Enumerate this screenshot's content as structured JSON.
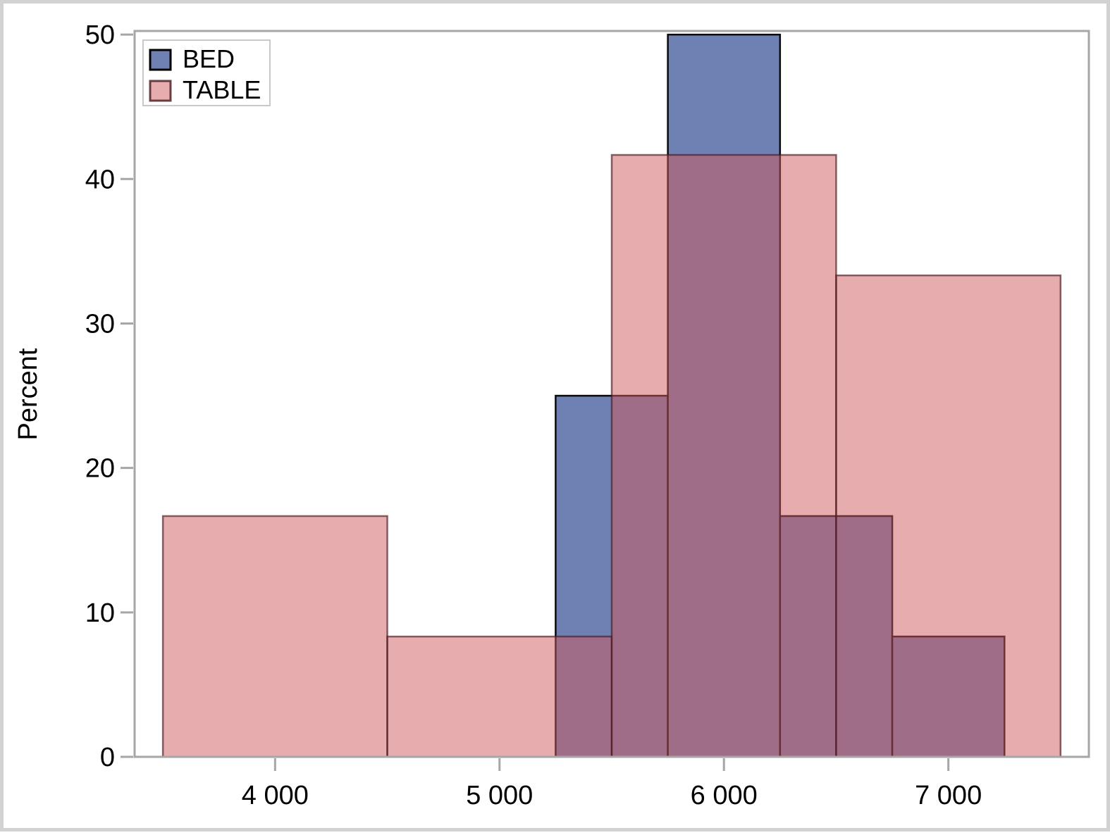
{
  "figure": {
    "border_color": "#D2D2D2",
    "background": "#FFFFFF"
  },
  "chart_data": {
    "type": "histogram",
    "overlay": true,
    "title": "",
    "xlabel": "",
    "ylabel": "Percent",
    "xlim": [
      3374,
      7626
    ],
    "ylim": [
      0,
      50.25
    ],
    "grid": false,
    "axis_color": "#A6A6A6",
    "tick_label_color": "#000000",
    "x_ticks": [
      {
        "value": 4000,
        "label": "4 000"
      },
      {
        "value": 5000,
        "label": "5 000"
      },
      {
        "value": 6000,
        "label": "6 000"
      },
      {
        "value": 7000,
        "label": "7 000"
      }
    ],
    "y_ticks": [
      {
        "value": 0,
        "label": "0"
      },
      {
        "value": 10,
        "label": "10"
      },
      {
        "value": 20,
        "label": "20"
      },
      {
        "value": 30,
        "label": "30"
      },
      {
        "value": 40,
        "label": "40"
      },
      {
        "value": 50,
        "label": "50"
      }
    ],
    "legend": {
      "position": "top-left-inside",
      "border_color": "#C9C9C9",
      "background": "#FFFFFF"
    },
    "series": [
      {
        "name": "BED",
        "fill": "#6F80B2",
        "fill_opacity": 1,
        "stroke": "#000000",
        "stroke_opacity": 0.95,
        "bin_width": 500,
        "bins": [
          {
            "x0": 5250,
            "x1": 5750,
            "percent": 25
          },
          {
            "x0": 5750,
            "x1": 6250,
            "percent": 50
          },
          {
            "x0": 6250,
            "x1": 6750,
            "percent": 16.67
          },
          {
            "x0": 6750,
            "x1": 7250,
            "percent": 8.33
          }
        ]
      },
      {
        "name": "TABLE",
        "fill": "#CF595D",
        "fill_opacity": 0.5,
        "stroke": "#46191E",
        "stroke_opacity": 0.65,
        "bin_width": 1000,
        "bins": [
          {
            "x0": 3500,
            "x1": 4500,
            "percent": 16.67
          },
          {
            "x0": 4500,
            "x1": 5500,
            "percent": 8.33
          },
          {
            "x0": 5500,
            "x1": 6500,
            "percent": 41.67
          },
          {
            "x0": 6500,
            "x1": 7500,
            "percent": 33.33
          }
        ]
      }
    ]
  }
}
